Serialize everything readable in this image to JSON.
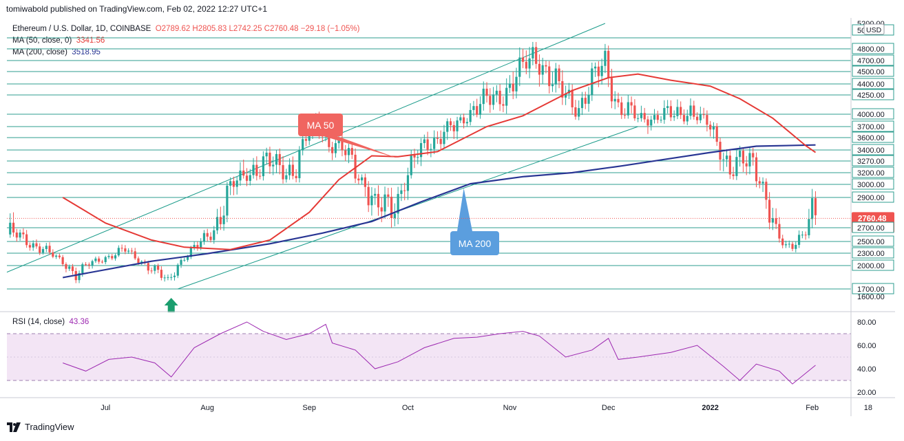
{
  "header": {
    "publisher": "tomiwabold published on TradingView.com, Feb 02, 2022 12:27 UTC+1"
  },
  "legend": {
    "symbol": "Ethereum / U.S. Dollar, 1D, COINBASE",
    "ohlc": "O2789.62  H2805.83  L2742.25  C2760.48  −29.18 (−1.05%)",
    "ma50_label": "MA (50, close, 0)",
    "ma50_value": "3341.56",
    "ma200_label": "MA (200, close)",
    "ma200_value": "3518.95"
  },
  "rsi_legend": {
    "label": "RSI (14, close)",
    "value": "43.36"
  },
  "footer": {
    "brand": "TradingView"
  },
  "colors": {
    "up": "#26a69a",
    "down": "#ef5350",
    "ma50": "#e53935",
    "ma200": "#283593",
    "rsi": "#9c27b0",
    "rsi_band": "#f3e5f5",
    "channel": "#1a9b8a",
    "level": "#2e9c8f"
  },
  "chart_data": {
    "type": "line",
    "title": "Ethereum / U.S. Dollar, 1D, COINBASE",
    "currency_badge": "USD",
    "price_ticks": [
      "5200.00",
      "5000.00",
      "4800.00",
      "4700.00",
      "4500.00",
      "4400.00",
      "4250.00",
      "4000.00",
      "3700.00",
      "3600.00",
      "3400.00",
      "3270.00",
      "3200.00",
      "3000.00",
      "2900.00",
      "2700.00",
      "2500.00",
      "2300.00",
      "2000.00",
      "1700.00",
      "1600.00"
    ],
    "horizontal_levels": [
      5000,
      4800,
      4700,
      4500,
      4400,
      4250,
      4000,
      3700,
      3600,
      3400,
      3270,
      3200,
      3000,
      2900,
      2700,
      2500,
      2300,
      2000,
      1700
    ],
    "x_ticks": [
      "Jul",
      "Aug",
      "Sep",
      "Oct",
      "Nov",
      "Dec",
      "2022",
      "Feb",
      "18"
    ],
    "last_price": "2760.48",
    "countdown": "12:32:13",
    "annotations": [
      {
        "text": "MA 50",
        "color": "#f06560"
      },
      {
        "text": "MA 200",
        "color": "#5b9ede"
      }
    ],
    "rsi_ticks": [
      "80.00",
      "60.00",
      "40.00",
      "20.00"
    ],
    "rsi_band": [
      30,
      70
    ],
    "series": [
      {
        "name": "MA (50, close, 0)",
        "color": "#e53935",
        "x": [
          "2021-06-18",
          "2021-07-01",
          "2021-07-15",
          "2021-07-25",
          "2021-08-08",
          "2021-08-20",
          "2021-09-01",
          "2021-09-10",
          "2021-09-20",
          "2021-09-28",
          "2021-10-10",
          "2021-10-25",
          "2021-11-05",
          "2021-11-20",
          "2021-12-01",
          "2021-12-10",
          "2021-12-20",
          "2022-01-01",
          "2022-01-10",
          "2022-01-20",
          "2022-01-30",
          "2022-02-02"
        ],
        "values": [
          2900,
          2730,
          2520,
          2400,
          2360,
          2520,
          2800,
          3080,
          3330,
          3320,
          3380,
          3700,
          3960,
          4310,
          4450,
          4480,
          4430,
          4370,
          4200,
          3900,
          3470,
          3370
        ]
      },
      {
        "name": "MA (200, close)",
        "color": "#283593",
        "x": [
          "2021-06-18",
          "2021-07-15",
          "2021-08-01",
          "2021-08-20",
          "2021-09-05",
          "2021-09-20",
          "2021-10-05",
          "2021-10-20",
          "2021-11-05",
          "2021-11-20",
          "2021-12-05",
          "2021-12-20",
          "2022-01-01",
          "2022-01-15",
          "2022-02-02"
        ],
        "values": [
          1840,
          2100,
          2290,
          2460,
          2620,
          2740,
          2870,
          3010,
          3130,
          3200,
          3240,
          3300,
          3370,
          3460,
          3480
        ]
      },
      {
        "name": "RSI (14, close)",
        "color": "#9c27b0",
        "x": [
          "2021-06-18",
          "2021-06-25",
          "2021-07-02",
          "2021-07-09",
          "2021-07-16",
          "2021-07-21",
          "2021-07-28",
          "2021-08-05",
          "2021-08-13",
          "2021-08-18",
          "2021-08-25",
          "2021-09-01",
          "2021-09-06",
          "2021-09-08",
          "2021-09-15",
          "2021-09-21",
          "2021-09-28",
          "2021-10-06",
          "2021-10-15",
          "2021-10-22",
          "2021-10-29",
          "2021-11-05",
          "2021-11-10",
          "2021-11-18",
          "2021-11-26",
          "2021-12-01",
          "2021-12-04",
          "2021-12-10",
          "2021-12-20",
          "2021-12-28",
          "2022-01-05",
          "2022-01-10",
          "2022-01-15",
          "2022-01-22",
          "2022-01-26",
          "2022-02-02"
        ],
        "values": [
          45,
          38,
          48,
          50,
          45,
          33,
          58,
          70,
          80,
          72,
          65,
          70,
          78,
          62,
          56,
          40,
          46,
          58,
          66,
          67,
          70,
          72,
          68,
          50,
          56,
          66,
          48,
          50,
          54,
          60,
          42,
          30,
          44,
          38,
          27,
          43
        ]
      }
    ]
  }
}
